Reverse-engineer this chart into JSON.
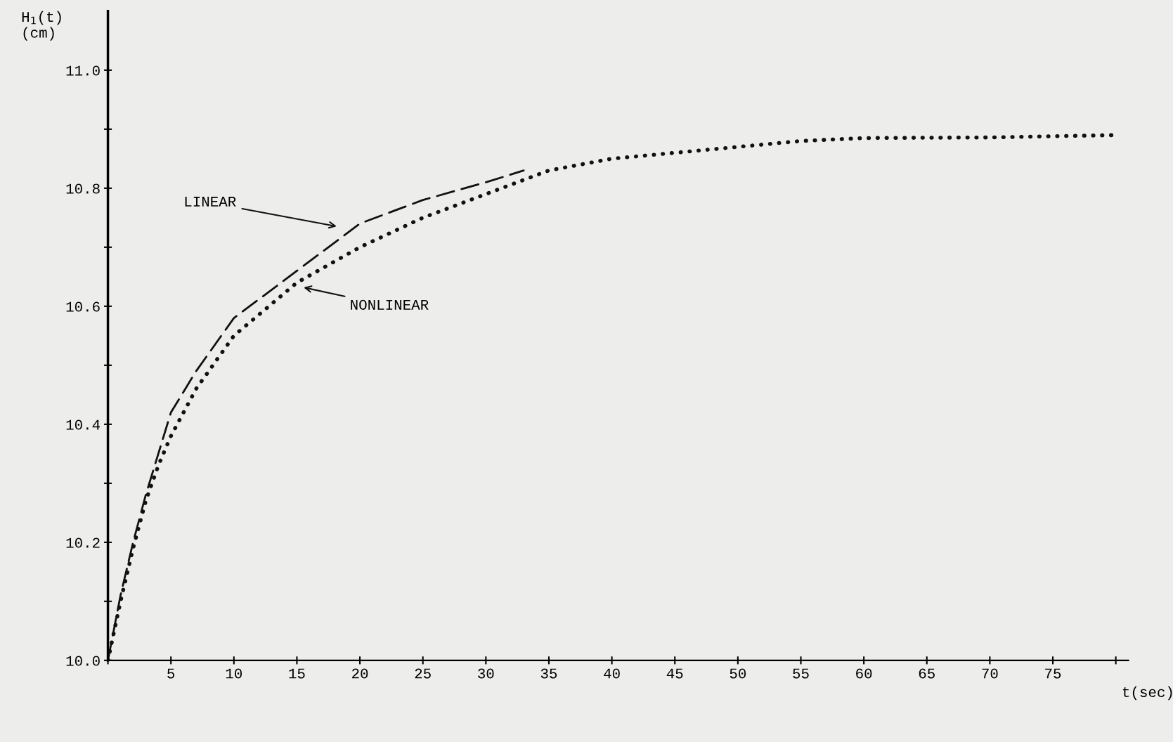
{
  "chart_data": {
    "type": "line",
    "xlabel": "t(sec)",
    "ylabel": "H$_{1}$(t)\n(cm)",
    "xlim": [
      0,
      81
    ],
    "ylim": [
      10.0,
      11.1
    ],
    "xticks": [
      {
        "value": 0,
        "label": null
      },
      5,
      10,
      15,
      20,
      25,
      30,
      35,
      40,
      45,
      50,
      55,
      60,
      65,
      70,
      75,
      {
        "value": 80,
        "label": null
      }
    ],
    "yticks": [
      {
        "value": 10.0,
        "label": "10.0"
      },
      {
        "value": 10.1,
        "label": null
      },
      10.2,
      {
        "value": 10.3,
        "label": null
      },
      10.4,
      {
        "value": 10.5,
        "label": null
      },
      10.6,
      {
        "value": 10.7,
        "label": null
      },
      10.8,
      {
        "value": 10.9,
        "label": null
      },
      {
        "value": 11.0,
        "label": "11.0"
      }
    ],
    "grid": false,
    "series": [
      {
        "color": "#111111",
        "line_style": "dashed",
        "x": [
          0,
          1,
          2,
          3,
          4,
          5,
          7,
          10,
          15,
          20,
          25,
          30,
          33
        ],
        "values": [
          10.0,
          10.11,
          10.2,
          10.28,
          10.35,
          10.42,
          10.49,
          10.58,
          10.66,
          10.74,
          10.78,
          10.81,
          10.83
        ]
      },
      {
        "color": "#111111",
        "line_style": "dotted",
        "x": [
          0,
          1,
          2,
          3,
          4,
          5,
          7,
          10,
          15,
          20,
          25,
          30,
          35,
          40,
          45,
          50,
          55,
          60,
          70,
          80
        ],
        "values": [
          10.0,
          10.1,
          10.19,
          10.27,
          10.33,
          10.38,
          10.46,
          10.55,
          10.64,
          10.7,
          10.75,
          10.79,
          10.83,
          10.85,
          10.86,
          10.87,
          10.88,
          10.885,
          10.886,
          10.89
        ]
      }
    ],
    "annotations": [
      "LINEAR",
      "NONLINEAR"
    ]
  }
}
